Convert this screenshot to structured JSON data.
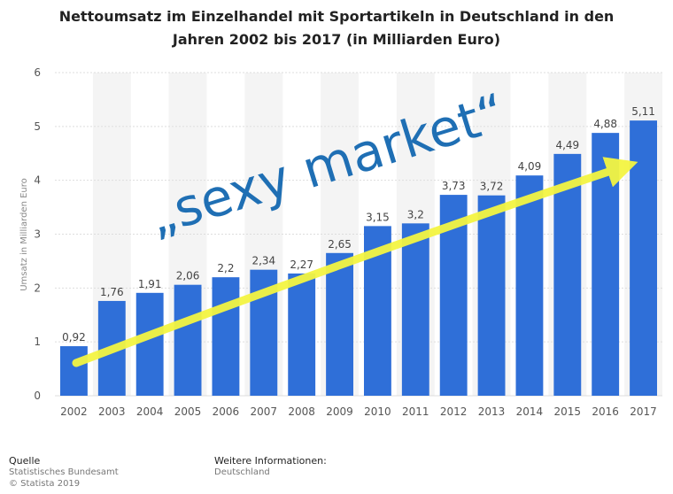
{
  "chart_data": {
    "type": "bar",
    "title_lines": [
      "Nettoumsatz im Einzelhandel mit Sportartikeln in Deutschland in den",
      "Jahren 2002 bis 2017 (in Milliarden Euro)"
    ],
    "ylabel": "Umsatz in Milliarden Euro",
    "xlabel": "",
    "ylim": [
      0,
      6
    ],
    "yticks": [
      "0",
      "1",
      "2",
      "3",
      "4",
      "5",
      "6"
    ],
    "categories": [
      "2002",
      "2003",
      "2004",
      "2005",
      "2006",
      "2007",
      "2008",
      "2009",
      "2010",
      "2011",
      "2012",
      "2013",
      "2014",
      "2015",
      "2016",
      "2017"
    ],
    "values": [
      0.92,
      1.76,
      1.91,
      2.06,
      2.2,
      2.34,
      2.27,
      2.65,
      3.15,
      3.2,
      3.73,
      3.72,
      4.09,
      4.49,
      4.88,
      5.11
    ],
    "value_labels": [
      "0,92",
      "1,76",
      "1,91",
      "2,06",
      "2,2",
      "2,34",
      "2,27",
      "2,65",
      "3,15",
      "3,2",
      "3,73",
      "3,72",
      "4,09",
      "4,49",
      "4,88",
      "5,11"
    ],
    "bar_color": "#2f6fd8",
    "annotation": "„sexy market“",
    "annotation_color": "#1f6fb4",
    "arrow_color": "#f4f542",
    "grid": true
  },
  "footer": {
    "source_heading": "Quelle",
    "source_lines": [
      "Statistisches Bundesamt",
      "© Statista 2019"
    ],
    "info_heading": "Weitere Informationen:",
    "info_lines": [
      "Deutschland"
    ]
  }
}
